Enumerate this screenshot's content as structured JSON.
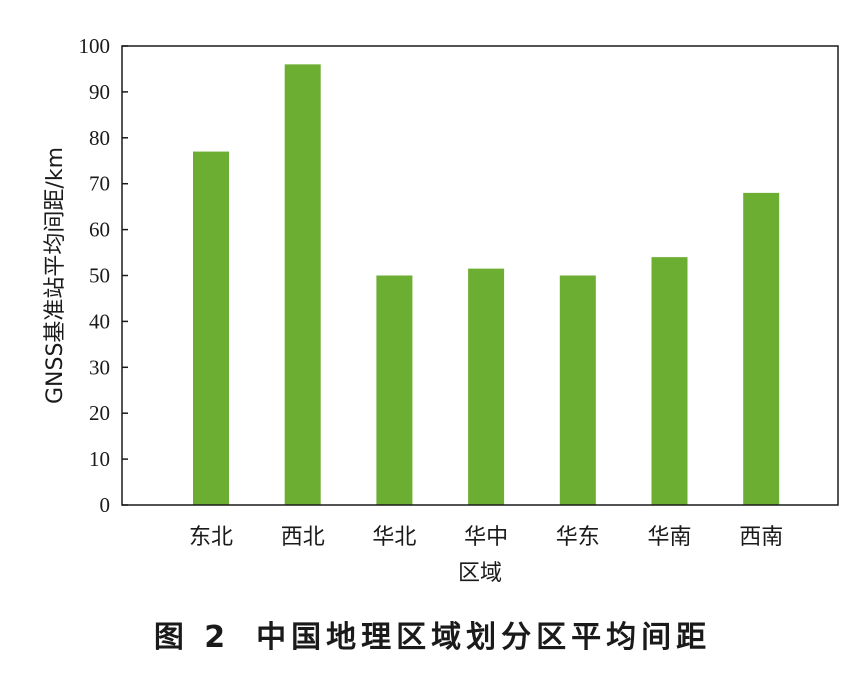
{
  "chart_data": {
    "type": "bar",
    "categories": [
      "东北",
      "西北",
      "华北",
      "华中",
      "华东",
      "华南",
      "西南"
    ],
    "values": [
      77,
      96,
      50,
      51.5,
      50,
      54,
      68
    ],
    "xlabel": "区域",
    "ylabel": "GNSS基准站平均间距/km",
    "ylim": [
      0,
      100
    ],
    "yticks": [
      "0",
      "10",
      "20",
      "30",
      "40",
      "50",
      "60",
      "70",
      "80",
      "90",
      "100"
    ],
    "bar_color": "#6bae31",
    "grid": false
  },
  "caption": {
    "number": "图 2",
    "text": "中国地理区域划分区平均间距"
  }
}
